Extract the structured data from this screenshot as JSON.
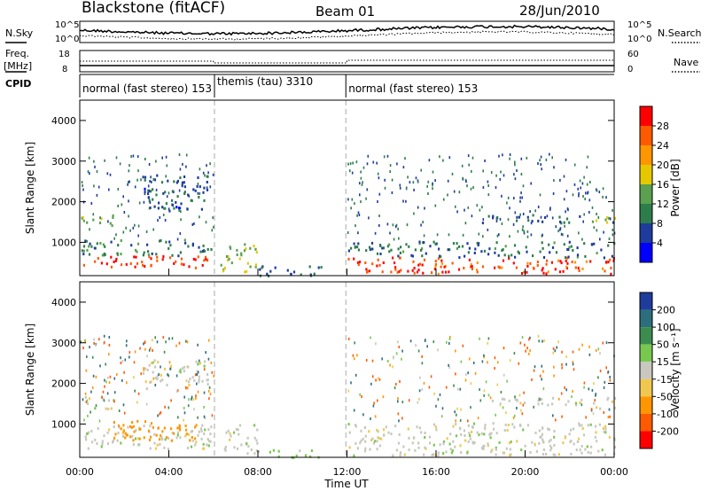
{
  "header": {
    "station": "Blackstone (fitACF)",
    "beam": "Beam 01",
    "date": "28/Jun/2010"
  },
  "side_labels": {
    "nsky": "N.Sky",
    "freq_top": "Freq.",
    "freq_unit": "[MHz]",
    "cpid": "CPID",
    "nsearch": "N.Search",
    "nave": "Nave"
  },
  "noise_axis": {
    "left_top": "10^5",
    "left_bottom": "10^0",
    "right_top": "10^5",
    "right_bottom": "10^0"
  },
  "freq_axis": {
    "left_ticks": [
      "18",
      "8"
    ],
    "right_ticks": [
      "60",
      "0"
    ]
  },
  "cpid_segments": [
    {
      "label": "normal (fast stereo) 153",
      "start_h": 0
    },
    {
      "label": "themis (tau) 3310",
      "start_h": 6.05
    },
    {
      "label": "normal (fast stereo) 153",
      "start_h": 11.95
    }
  ],
  "time_axis": {
    "label": "Time UT",
    "ticks": [
      "00:00",
      "04:00",
      "08:00",
      "12:00",
      "16:00",
      "20:00",
      "00:00"
    ]
  },
  "power_colorbar": {
    "title": "Power [dB]",
    "ticks": [
      "28",
      "24",
      "20",
      "16",
      "12",
      "8",
      "4"
    ],
    "colors": [
      "#ff0000",
      "#ff5a00",
      "#ff9600",
      "#e6c800",
      "#5aa050",
      "#2d7d4b",
      "#1e3c9b",
      "#0000ff"
    ]
  },
  "velocity_colorbar": {
    "title": "Velocity [m s⁻¹]",
    "ticks": [
      "200",
      "100",
      "50",
      "15",
      "-15",
      "-50",
      "-100",
      "-200"
    ],
    "colors": [
      "#1e3c9b",
      "#2d6e7d",
      "#3c8c50",
      "#78c850",
      "#c8c8c0",
      "#f0c850",
      "#ff9600",
      "#ff5a00",
      "#ff0000"
    ]
  },
  "chart_data": [
    {
      "type": "heatmap",
      "title": "Power [dB]",
      "xlabel": "Time UT",
      "ylabel": "Slant Range [km]",
      "xlim_hours": [
        0,
        24
      ],
      "ylim_km": [
        180,
        4500
      ],
      "yticks": [
        1000,
        2000,
        3000,
        4000
      ],
      "regions": [
        {
          "t": [
            0,
            5.8
          ],
          "r": [
            400,
            700
          ],
          "level": 26
        },
        {
          "t": [
            0,
            6
          ],
          "r": [
            700,
            1100
          ],
          "level": 8
        },
        {
          "t": [
            0,
            1.5
          ],
          "r": [
            1400,
            1700
          ],
          "level": 12
        },
        {
          "t": [
            2.8,
            5.8
          ],
          "r": [
            1800,
            2700
          ],
          "level": 5
        },
        {
          "t": [
            6.3,
            8
          ],
          "r": [
            300,
            1000
          ],
          "level": 14
        },
        {
          "t": [
            8,
            11
          ],
          "r": [
            200,
            450
          ],
          "level": 6
        },
        {
          "t": [
            12,
            24
          ],
          "r": [
            250,
            650
          ],
          "level": 25
        },
        {
          "t": [
            12,
            24
          ],
          "r": [
            650,
            1050
          ],
          "level": 7
        },
        {
          "t": [
            18,
            22.5
          ],
          "r": [
            1500,
            1700
          ],
          "level": 6
        },
        {
          "t": [
            23,
            24
          ],
          "r": [
            1400,
            1700
          ],
          "level": 14
        }
      ]
    },
    {
      "type": "heatmap",
      "title": "Velocity [m s⁻¹]",
      "xlabel": "Time UT",
      "ylabel": "Slant Range [km]",
      "xlim_hours": [
        0,
        24
      ],
      "ylim_km": [
        180,
        4500
      ],
      "yticks": [
        1000,
        2000,
        3000,
        4000
      ],
      "regions": [
        {
          "t": [
            0,
            6
          ],
          "r": [
            400,
            1000
          ],
          "velocity": 0
        },
        {
          "t": [
            1.5,
            5.5
          ],
          "r": [
            600,
            1100
          ],
          "velocity": -80
        },
        {
          "t": [
            0,
            1.5
          ],
          "r": [
            1400,
            1700
          ],
          "velocity": 0
        },
        {
          "t": [
            2.8,
            5.8
          ],
          "r": [
            1900,
            2600
          ],
          "velocity": 0
        },
        {
          "t": [
            6.3,
            8
          ],
          "r": [
            300,
            1000
          ],
          "velocity": 0
        },
        {
          "t": [
            8.5,
            10.8
          ],
          "r": [
            200,
            400
          ],
          "velocity": 30
        },
        {
          "t": [
            12,
            24
          ],
          "r": [
            250,
            1050
          ],
          "velocity": 0
        },
        {
          "t": [
            18,
            22.5
          ],
          "r": [
            1500,
            1700
          ],
          "velocity": 0
        },
        {
          "t": [
            23,
            24
          ],
          "r": [
            1400,
            1700
          ],
          "velocity": 0
        }
      ]
    }
  ]
}
